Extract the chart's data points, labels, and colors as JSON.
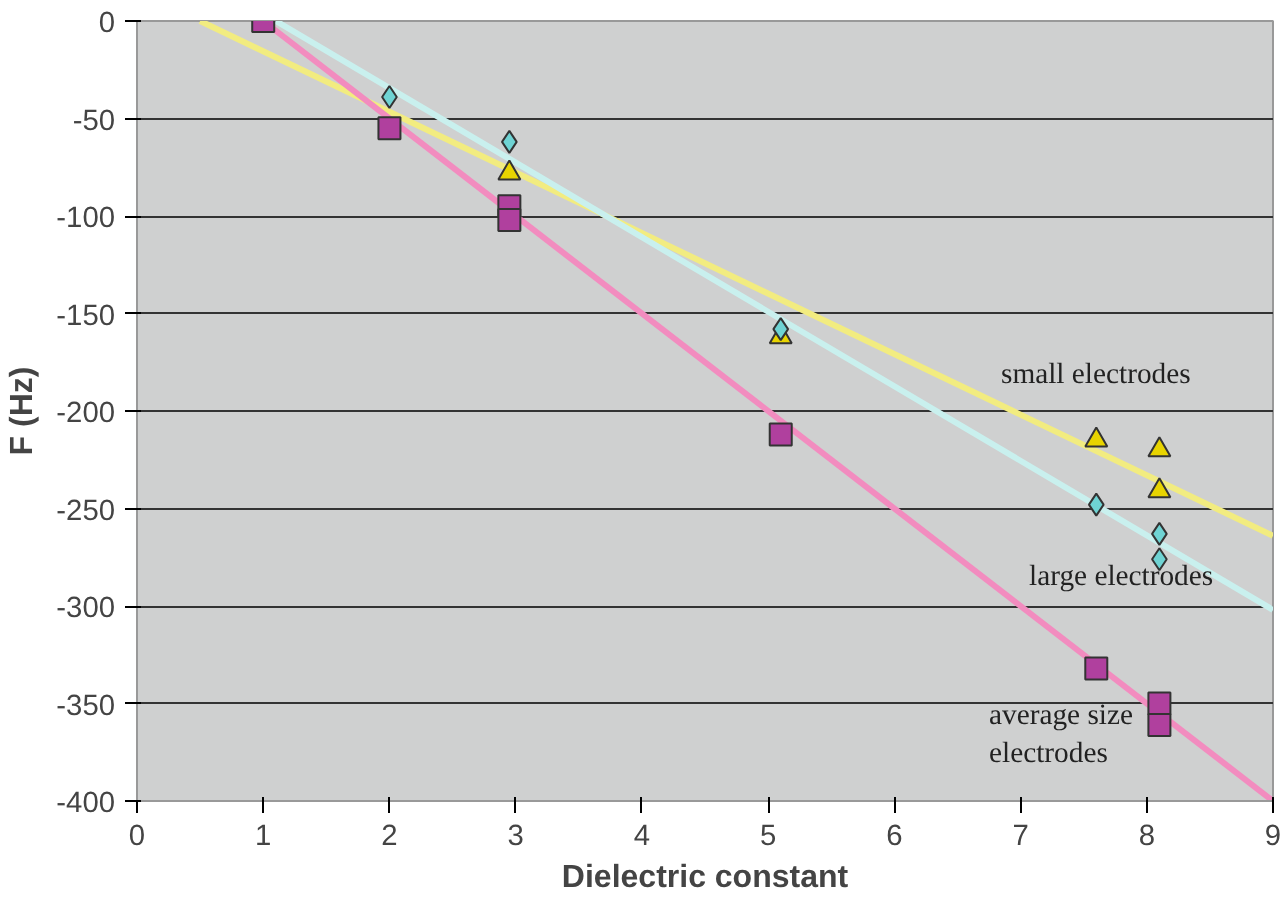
{
  "chart_data": {
    "type": "scatter",
    "xlabel": "Dielectric constant",
    "ylabel": "F (Hz)",
    "xlim": [
      0,
      9
    ],
    "ylim": [
      -400,
      0
    ],
    "xticks": [
      0,
      1,
      2,
      3,
      4,
      5,
      6,
      7,
      8,
      9
    ],
    "yticks": [
      -400,
      -350,
      -300,
      -250,
      -200,
      -150,
      -100,
      -50,
      0
    ],
    "grid": "y",
    "series": [
      {
        "type": "line",
        "color": "#f2ec80",
        "x": [
          0.5,
          9
        ],
        "values": [
          0,
          -264
        ]
      },
      {
        "type": "line",
        "color": "#c9f0ee",
        "x": [
          1.1,
          9
        ],
        "values": [
          0,
          -302
        ]
      },
      {
        "type": "line",
        "color": "#f28cbf",
        "x": [
          1,
          9
        ],
        "values": [
          0,
          -400
        ]
      },
      {
        "marker": "triangle",
        "color": "#e8d400",
        "x": [
          2.95,
          5.1,
          7.6,
          8.1,
          8.1
        ],
        "values": [
          -78,
          -162,
          -215,
          -220,
          -241
        ]
      },
      {
        "marker": "diamond",
        "color": "#6fd3d3",
        "x": [
          2,
          2.95,
          5.1,
          7.6,
          8.1,
          8.1
        ],
        "values": [
          -39,
          -62,
          -158,
          -248,
          -263,
          -276
        ]
      },
      {
        "marker": "square",
        "color": "#b0409e",
        "x": [
          1,
          2,
          2.95,
          2.95,
          5.1,
          7.6,
          8.1,
          8.1
        ],
        "values": [
          0,
          -55,
          -95,
          -102,
          -212,
          -332,
          -350,
          -361
        ]
      }
    ],
    "annotations": [
      "small electrodes",
      "large electrodes",
      "average size\nelectrodes"
    ]
  }
}
